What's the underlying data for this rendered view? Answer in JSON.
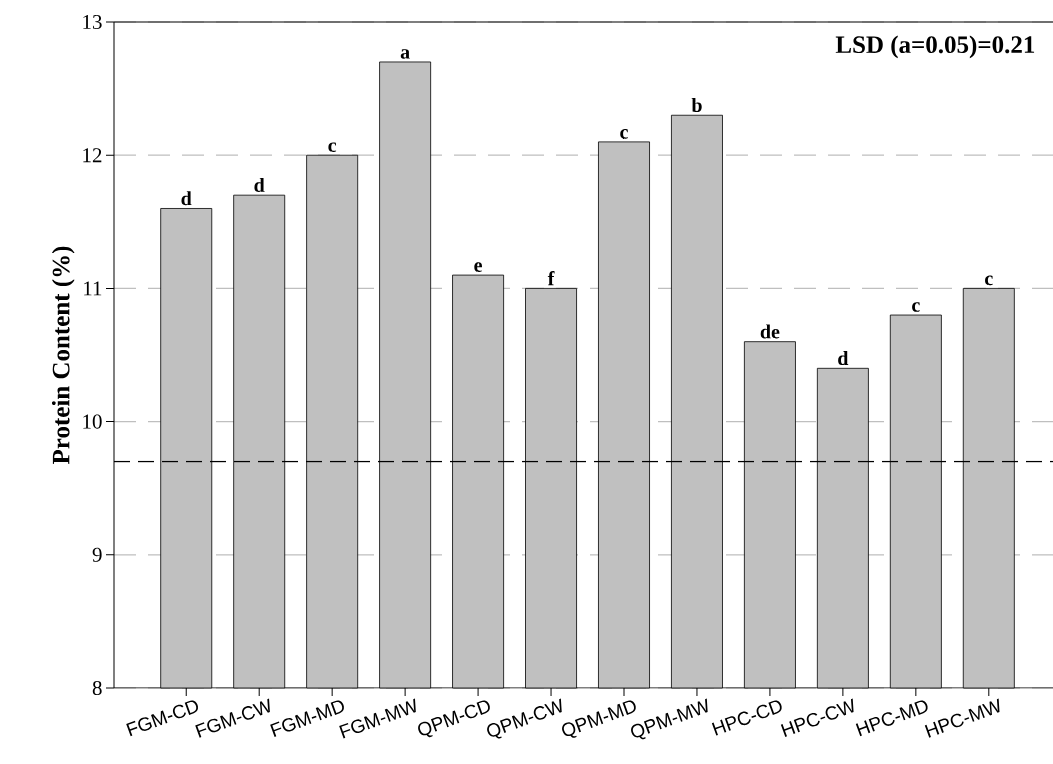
{
  "chart_data": {
    "type": "bar",
    "ylabel": "Protein Content (%)",
    "categories": [
      "FGM-CD",
      "FGM-CW",
      "FGM-MD",
      "FGM-MW",
      "QPM-CD",
      "QPM-CW",
      "QPM-MD",
      "QPM-MW",
      "HPC-CD",
      "HPC-CW",
      "HPC-MD",
      "HPC-MW"
    ],
    "values": [
      11.6,
      11.7,
      12.0,
      12.7,
      11.1,
      11.0,
      12.1,
      12.3,
      10.6,
      10.4,
      10.8,
      11.0
    ],
    "color": "#c0c0c0",
    "ylim": [
      8,
      13
    ],
    "yticks": [
      8,
      9,
      10,
      11,
      12,
      13
    ],
    "grid": "y",
    "ref_lines": [
      {
        "axis": "y",
        "value": 9.7,
        "color": "#000000",
        "line_style": "dashed"
      }
    ],
    "annotations": [
      "LSD (a=0.05)=0.21",
      {
        "text": "d",
        "x": "FGM-CD",
        "y": 11.6
      },
      {
        "text": "d",
        "x": "FGM-CW",
        "y": 11.7
      },
      {
        "text": "c",
        "x": "FGM-MD",
        "y": 12.0
      },
      {
        "text": "a",
        "x": "FGM-MW",
        "y": 12.7
      },
      {
        "text": "e",
        "x": "QPM-CD",
        "y": 11.1
      },
      {
        "text": "f",
        "x": "QPM-CW",
        "y": 11.0
      },
      {
        "text": "c",
        "x": "QPM-MD",
        "y": 12.1
      },
      {
        "text": "b",
        "x": "QPM-MW",
        "y": 12.3
      },
      {
        "text": "de",
        "x": "HPC-CD",
        "y": 10.6
      },
      {
        "text": "d",
        "x": "HPC-CW",
        "y": 10.4
      },
      {
        "text": "c",
        "x": "HPC-MD",
        "y": 10.8
      },
      {
        "text": "c",
        "x": "HPC-MW",
        "y": 11.0
      }
    ]
  }
}
